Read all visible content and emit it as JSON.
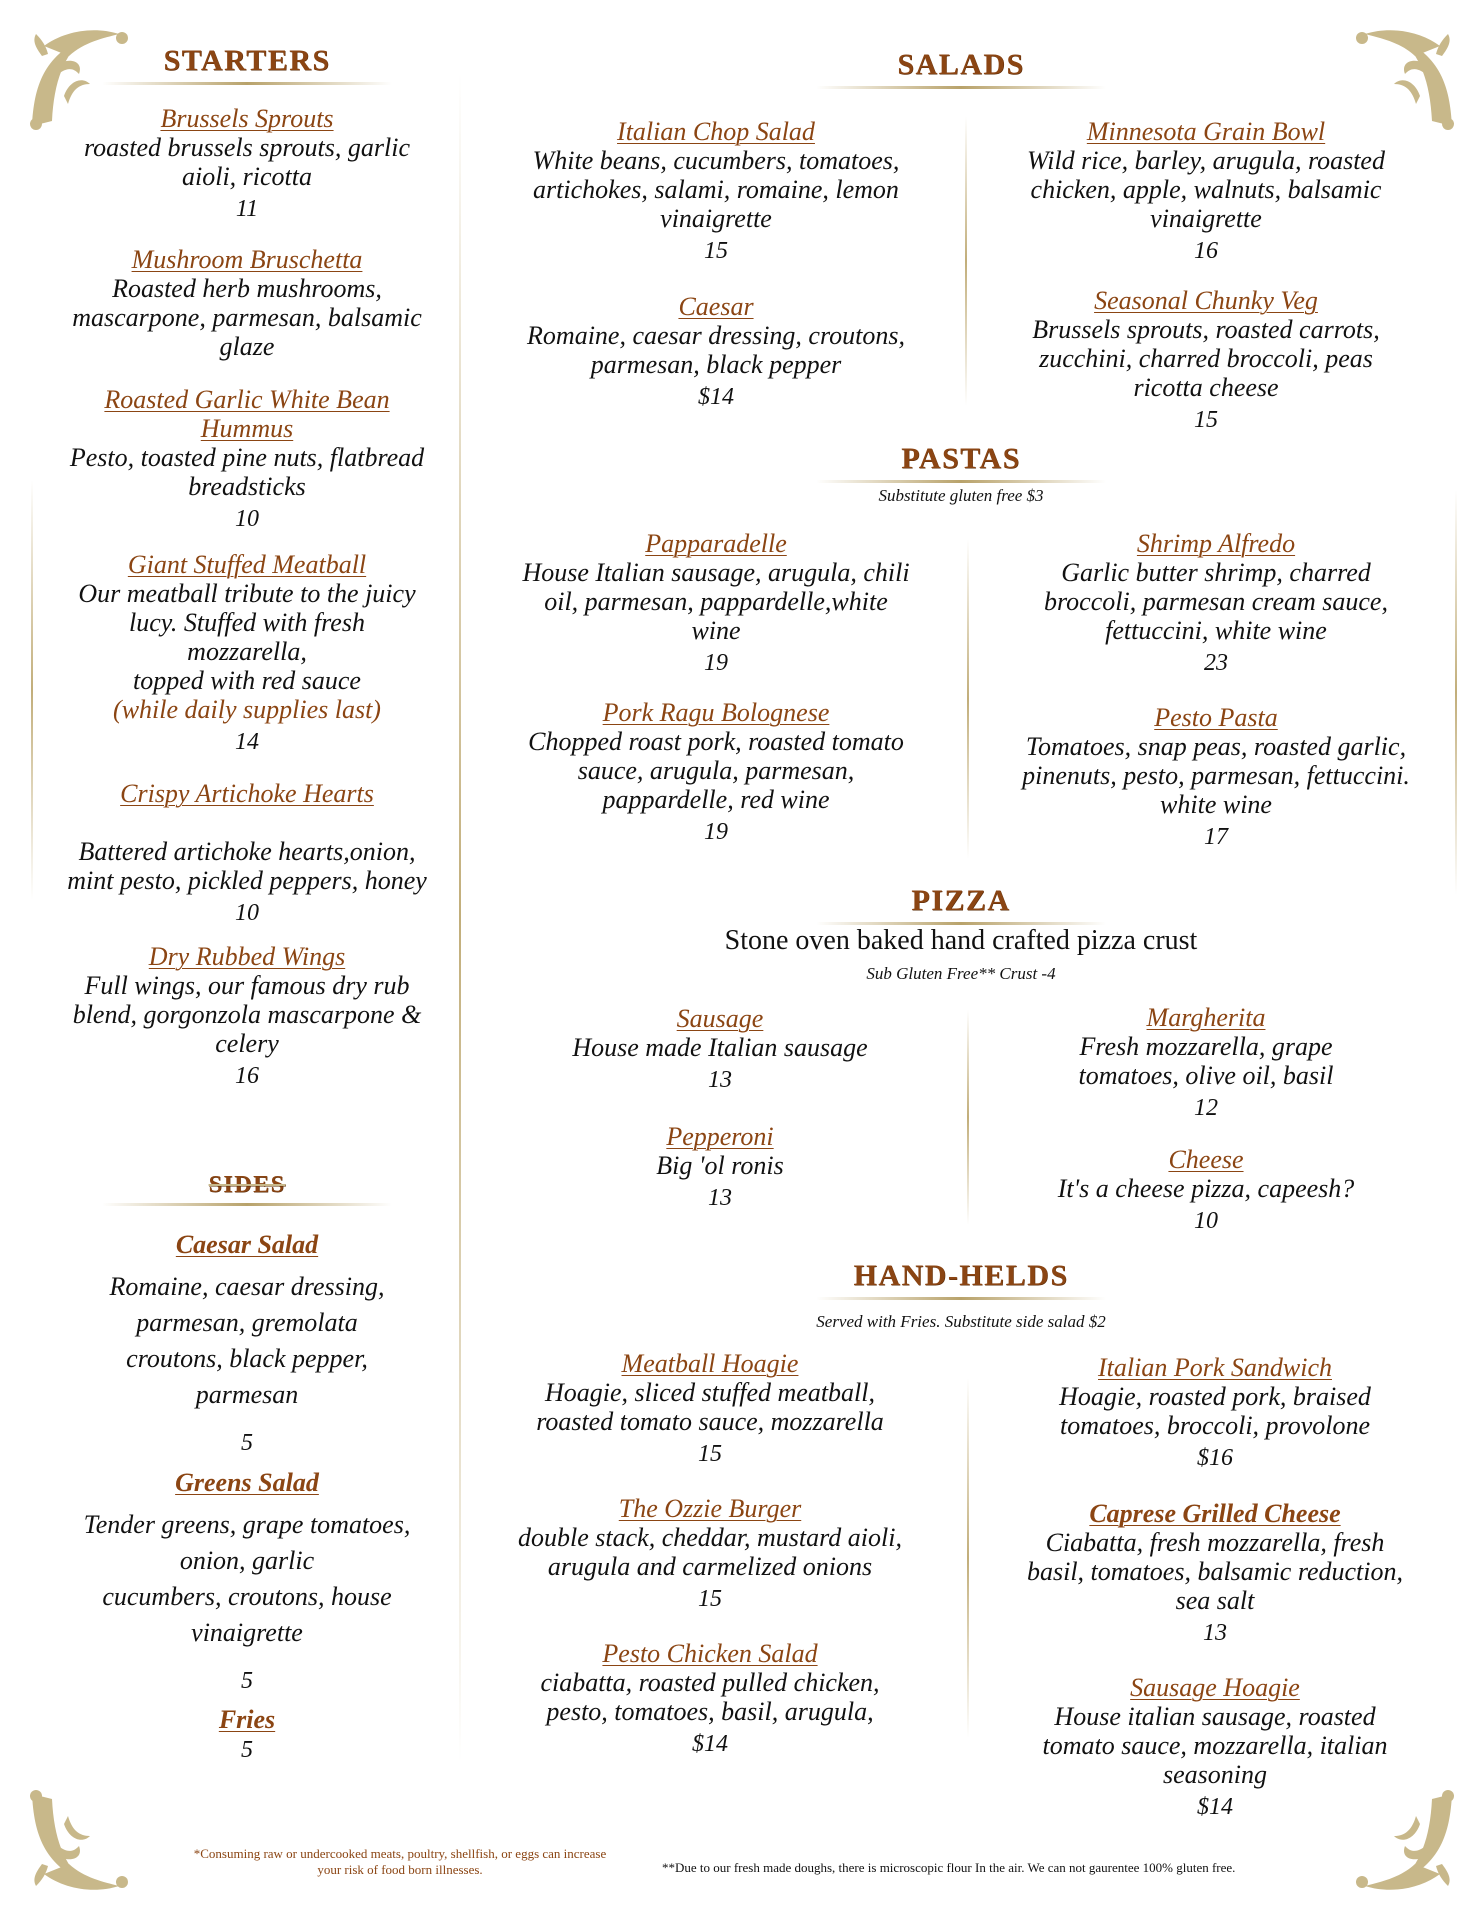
{
  "colors": {
    "heading": "#8b4513",
    "ornament": "#c8b88a",
    "text": "#111111"
  },
  "starters": {
    "title": "STARTERS",
    "items": [
      {
        "title": "Brussels Sprouts",
        "lines": [
          "roasted brussels sprouts, garlic",
          "aioli, ricotta"
        ],
        "price": "11"
      },
      {
        "title": "Mushroom Bruschetta",
        "lines": [
          "Roasted herb mushrooms,",
          "mascarpone, parmesan, balsamic",
          "glaze"
        ],
        "price": ""
      },
      {
        "title": "Roasted Garlic White Bean Hummus",
        "lines": [
          "Pesto, toasted pine nuts, flatbread",
          "breadsticks"
        ],
        "price": "10"
      },
      {
        "title": "Giant Stuffed Meatball",
        "lines": [
          "Our meatball tribute to the juicy",
          "lucy.  Stuffed with fresh",
          "mozzarella,",
          "topped with red sauce"
        ],
        "note": "(while daily supplies last)",
        "price": "14"
      },
      {
        "title": "Crispy Artichoke Hearts",
        "lines": [
          "Battered artichoke hearts,onion,",
          "mint pesto, pickled peppers, honey"
        ],
        "price": "10"
      },
      {
        "title": "Dry Rubbed Wings",
        "lines": [
          "Full wings, our famous dry rub",
          "blend, gorgonzola mascarpone &",
          "celery"
        ],
        "price": "16"
      }
    ]
  },
  "sides": {
    "title": "SIDES",
    "items": [
      {
        "title": "Caesar Salad",
        "lines": [
          "Romaine, caesar dressing,",
          "parmesan, gremolata",
          "croutons, black pepper,",
          "parmesan"
        ],
        "price": "5"
      },
      {
        "title": "Greens Salad",
        "lines": [
          "Tender greens, grape tomatoes,",
          "onion, garlic",
          "cucumbers, croutons, house",
          "vinaigrette"
        ],
        "price": "5"
      },
      {
        "title": "Fries",
        "lines": [],
        "price": "5"
      }
    ]
  },
  "salads": {
    "title": "SALADS",
    "items": [
      {
        "title": "Italian Chop Salad",
        "lines": [
          "White beans, cucumbers, tomatoes,",
          "artichokes, salami, romaine, lemon",
          "vinaigrette"
        ],
        "price": "15"
      },
      {
        "title": "Caesar",
        "lines": [
          "Romaine, caesar dressing, croutons,",
          "parmesan, black pepper"
        ],
        "price": "$14"
      },
      {
        "title": "Minnesota Grain Bowl",
        "lines": [
          "Wild rice, barley, arugula, roasted",
          "chicken, apple, walnuts, balsamic",
          "vinaigrette"
        ],
        "price": "16"
      },
      {
        "title": "Seasonal Chunky Veg",
        "lines": [
          "Brussels sprouts, roasted carrots,",
          "zucchini, charred broccoli, peas",
          "ricotta cheese"
        ],
        "price": "15"
      }
    ]
  },
  "pastas": {
    "title": "PASTAS",
    "subtitle": "Substitute gluten free $3",
    "items": [
      {
        "title": "Papparadelle",
        "lines": [
          "House Italian sausage, arugula, chili",
          "oil, parmesan, pappardelle,white",
          "wine"
        ],
        "price": "19"
      },
      {
        "title": "Pork Ragu Bolognese",
        "lines": [
          "Chopped roast pork, roasted tomato",
          "sauce, arugula, parmesan,",
          "pappardelle, red wine"
        ],
        "price": "19"
      },
      {
        "title": "Shrimp Alfredo",
        "lines": [
          "Garlic butter shrimp, charred",
          "broccoli, parmesan cream sauce,",
          "fettuccini, white wine"
        ],
        "price": "23"
      },
      {
        "title": "Pesto Pasta",
        "lines": [
          "Tomatoes, snap peas, roasted garlic,",
          "pinenuts, pesto, parmesan, fettuccini.",
          "white wine"
        ],
        "price": "17"
      }
    ]
  },
  "pizza": {
    "title": "PIZZA",
    "tagline": "Stone oven baked hand crafted pizza crust",
    "subtitle": "Sub Gluten Free** Crust   -4",
    "items": [
      {
        "title": "Sausage",
        "lines": [
          "House made Italian sausage"
        ],
        "price": "13"
      },
      {
        "title": "Pepperoni",
        "lines": [
          "Big 'ol ronis"
        ],
        "price": "13"
      },
      {
        "title": "Margherita",
        "lines": [
          "Fresh mozzarella, grape",
          "tomatoes, olive oil, basil"
        ],
        "price": "12"
      },
      {
        "title": "Cheese",
        "lines": [
          "It's a cheese pizza, capeesh?"
        ],
        "price": "10"
      }
    ]
  },
  "handhelds": {
    "title": "HAND-HELDS",
    "subtitle": "Served with Fries.  Substitute side salad  $2",
    "items": [
      {
        "title": "Meatball Hoagie",
        "lines": [
          "Hoagie, sliced stuffed meatball,",
          "roasted tomato sauce, mozzarella"
        ],
        "price": "15"
      },
      {
        "title": "The Ozzie Burger",
        "lines": [
          "double stack, cheddar, mustard aioli,",
          "arugula and carmelized onions"
        ],
        "price": "15"
      },
      {
        "title": "Pesto Chicken Salad",
        "lines": [
          "ciabatta, roasted pulled chicken,",
          "pesto, tomatoes, basil, arugula,"
        ],
        "price": "$14"
      },
      {
        "title": "Italian Pork Sandwich",
        "lines": [
          "Hoagie, roasted pork, braised",
          "tomatoes, broccoli, provolone"
        ],
        "price": "$16"
      },
      {
        "title": "Caprese Grilled Cheese",
        "lines": [
          "Ciabatta, fresh mozzarella, fresh",
          "basil, tomatoes, balsamic reduction,",
          "sea salt"
        ],
        "price": "13"
      },
      {
        "title": "Sausage Hoagie",
        "lines": [
          "House italian sausage, roasted",
          "tomato sauce, mozzarella, italian",
          "seasoning"
        ],
        "price": "$14"
      }
    ]
  },
  "footer": {
    "left": "*Consuming raw or undercooked meats, poultry, shellfish, or eggs can increase your risk of food born illnesses.",
    "left_line1": "*Consuming raw or undercooked meats, poultry, shellfish, or eggs can increase",
    "left_line2": "your risk of food born illnesses.",
    "right": "**Due to our fresh made doughs, there is microscopic flour In the air.  We can not gaurentee 100% gluten free."
  }
}
